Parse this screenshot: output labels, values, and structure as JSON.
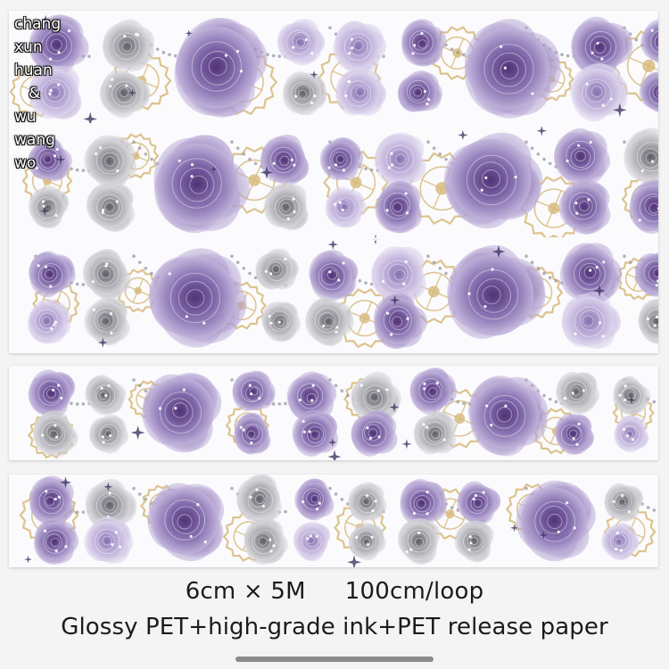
{
  "side_text": [
    "chang",
    "xun",
    "huan",
    "&",
    "wu",
    "wang",
    "wo"
  ],
  "caption": {
    "size": "6cm × 5M",
    "loop": "100cm/loop",
    "material": "Glossy PET+high-grade ink+PET release paper"
  },
  "colors": {
    "purple_dark": "#4b2a6e",
    "purple": "#7f68aa",
    "lavender": "#b6a7d4",
    "grey_rose": "#7d7d85",
    "gold": "#d7b97a",
    "strip_bg": "#fbfbfd"
  }
}
